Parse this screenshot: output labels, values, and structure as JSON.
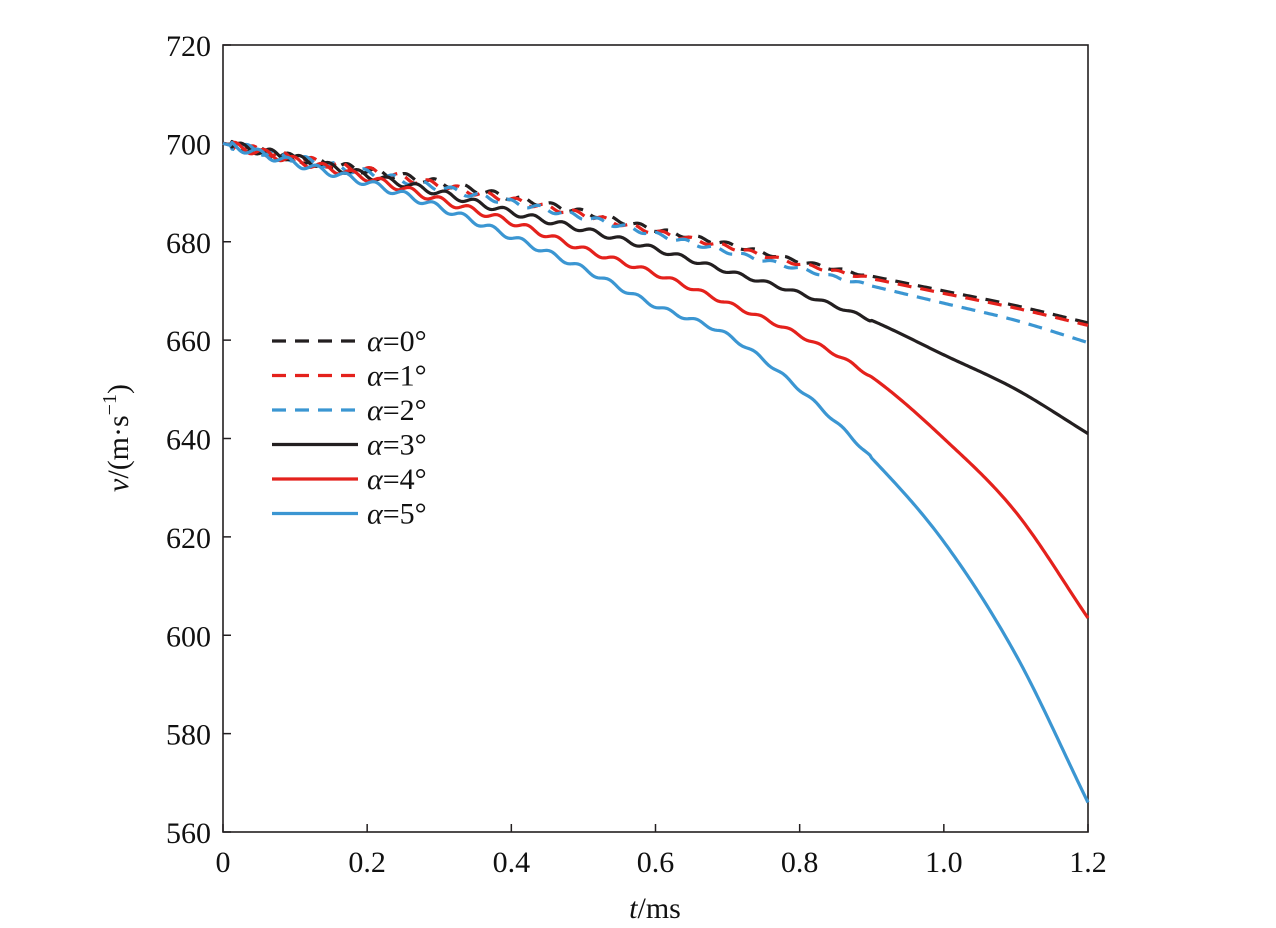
{
  "chart_data": {
    "type": "line",
    "xlabel": {
      "var": "t",
      "unit": "/ms"
    },
    "ylabel": {
      "var": "v",
      "unit": "/(m·s",
      "exp": "−1",
      "close": ")"
    },
    "xlim": [
      0,
      1.2
    ],
    "ylim": [
      560,
      720
    ],
    "xticks": [
      0,
      0.2,
      0.4,
      0.6,
      0.8,
      1.0,
      1.2
    ],
    "xtick_labels": [
      "0",
      "0.2",
      "0.4",
      "0.6",
      "0.8",
      "1.0",
      "1.2"
    ],
    "yticks": [
      560,
      580,
      600,
      620,
      640,
      660,
      680,
      700,
      720
    ],
    "ytick_labels": [
      "560",
      "580",
      "600",
      "620",
      "640",
      "660",
      "680",
      "700",
      "720"
    ],
    "grid": false,
    "legend_position": "center-left",
    "x": [
      0,
      0.1,
      0.2,
      0.3,
      0.4,
      0.5,
      0.6,
      0.7,
      0.8,
      0.9,
      1.0,
      1.1,
      1.2
    ],
    "series": [
      {
        "name": "α=0°",
        "color": "#231f20",
        "dash": true,
        "values": [
          700,
          697,
          694.5,
          692,
          689,
          686,
          682.5,
          679.5,
          676,
          673,
          670,
          667,
          663.5
        ]
      },
      {
        "name": "α=1°",
        "color": "#e4211c",
        "dash": true,
        "values": [
          700,
          697,
          694.5,
          691.5,
          688.5,
          685.5,
          682,
          679,
          675.5,
          672.5,
          669.5,
          666.5,
          663
        ]
      },
      {
        "name": "α=2°",
        "color": "#3b96d2",
        "dash": true,
        "values": [
          700,
          697,
          694,
          691,
          688,
          685,
          681.5,
          678,
          674.5,
          671,
          667.5,
          664,
          659.5
        ]
      },
      {
        "name": "α=3°",
        "color": "#231f20",
        "dash": false,
        "values": [
          700,
          697,
          693.5,
          690,
          686,
          682.5,
          678.5,
          674,
          669.5,
          664,
          657,
          650,
          641
        ]
      },
      {
        "name": "α=4°",
        "color": "#e4211c",
        "dash": false,
        "values": [
          700,
          696.5,
          693,
          688.5,
          684,
          678.5,
          673.5,
          667.5,
          661,
          652.5,
          640,
          625,
          603.5
        ]
      },
      {
        "name": "α=5°",
        "color": "#3b96d2",
        "dash": false,
        "values": [
          700,
          696,
          692,
          687,
          681,
          674.5,
          667,
          661,
          650,
          636,
          619,
          596,
          566
        ]
      }
    ]
  }
}
